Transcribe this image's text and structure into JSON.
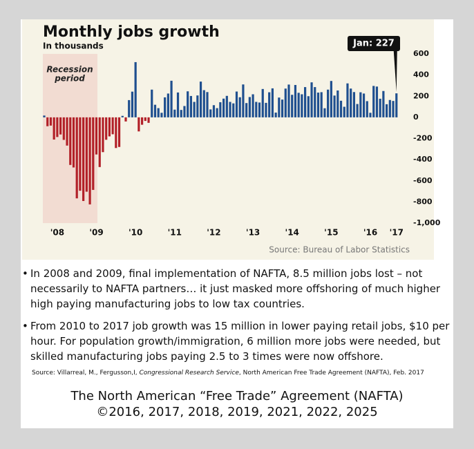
{
  "chart_data": {
    "type": "bar",
    "title": "Monthly jobs growth",
    "subtitle": "In thousands",
    "categories": [
      null,
      null,
      null,
      null,
      "'08",
      null,
      null,
      null,
      null,
      null,
      null,
      null,
      null,
      null,
      null,
      null,
      "'09",
      null,
      null,
      null,
      null,
      null,
      null,
      null,
      null,
      null,
      null,
      null,
      "'10",
      null,
      null,
      null,
      null,
      null,
      null,
      null,
      null,
      null,
      null,
      null,
      "'11",
      null,
      null,
      null,
      null,
      null,
      null,
      null,
      null,
      null,
      null,
      null,
      "'12",
      null,
      null,
      null,
      null,
      null,
      null,
      null,
      null,
      null,
      null,
      null,
      "'13",
      null,
      null,
      null,
      null,
      null,
      null,
      null,
      null,
      null,
      null,
      null,
      "'14",
      null,
      null,
      null,
      null,
      null,
      null,
      null,
      null,
      null,
      null,
      null,
      "'15",
      null,
      null,
      null,
      null,
      null,
      null,
      null,
      null,
      null,
      null,
      null,
      "'16",
      null,
      null,
      null,
      null,
      null,
      null,
      null,
      "'17"
    ],
    "values": [
      17,
      -84,
      -78,
      -210,
      -186,
      -162,
      -213,
      -267,
      -450,
      -474,
      -766,
      -694,
      -791,
      -703,
      -823,
      -686,
      -351,
      -470,
      -329,
      -212,
      -180,
      -160,
      -290,
      -280,
      14,
      -39,
      163,
      243,
      522,
      -133,
      -70,
      -34,
      -52,
      262,
      119,
      87,
      43,
      189,
      225,
      346,
      73,
      235,
      70,
      107,
      246,
      202,
      146,
      207,
      338,
      257,
      239,
      75,
      115,
      87,
      143,
      177,
      203,
      146,
      132,
      244,
      190,
      311,
      135,
      192,
      218,
      146,
      140,
      268,
      137,
      237,
      274,
      45,
      187,
      168,
      272,
      310,
      213,
      306,
      232,
      218,
      286,
      200,
      331,
      286,
      234,
      238,
      86,
      262,
      344,
      206,
      254,
      157,
      100,
      321,
      272,
      239,
      126,
      237,
      225,
      153,
      43,
      297,
      291,
      176,
      249,
      124,
      164,
      155,
      227
    ],
    "colors": {
      "positive": "#1f4f8f",
      "negative": "#b22028"
    },
    "ylim": [
      -1000,
      600
    ],
    "yticks": [
      600,
      400,
      200,
      0,
      -200,
      -400,
      -600,
      -800,
      {
        "value": -1000,
        "label": "-1,000"
      }
    ],
    "grid": false,
    "shaded_label": [
      "Recession",
      "period"
    ],
    "callout": "Jan: 227",
    "source": "Source: Bureau of Labor Statistics"
  },
  "bullets": [
    "In 2008 and 2009, final implementation of NAFTA, 8.5 million jobs lost – not necessarily to NAFTA partners… it just masked more offshoring of much higher high paying manufacturing jobs to low tax countries.",
    "From 2010 to 2017 job growth was 15 million in lower paying retail jobs, $10 per hour.  For population growth/immigration, 6 million more jobs were needed, but skilled manufacturing jobs paying 2.5 to 3 times were now offshore."
  ],
  "citation": [
    "Source: Villarreal, M., Fergusson,I, ",
    "Congressional Research Service",
    ", North American Free Trade Agreement (NAFTA), Feb. 2017"
  ],
  "footer": [
    "The North American “Free Trade” Agreement (NAFTA)",
    "©2016, 2017, 2018, 2019, 2021, 2022, 2025"
  ]
}
